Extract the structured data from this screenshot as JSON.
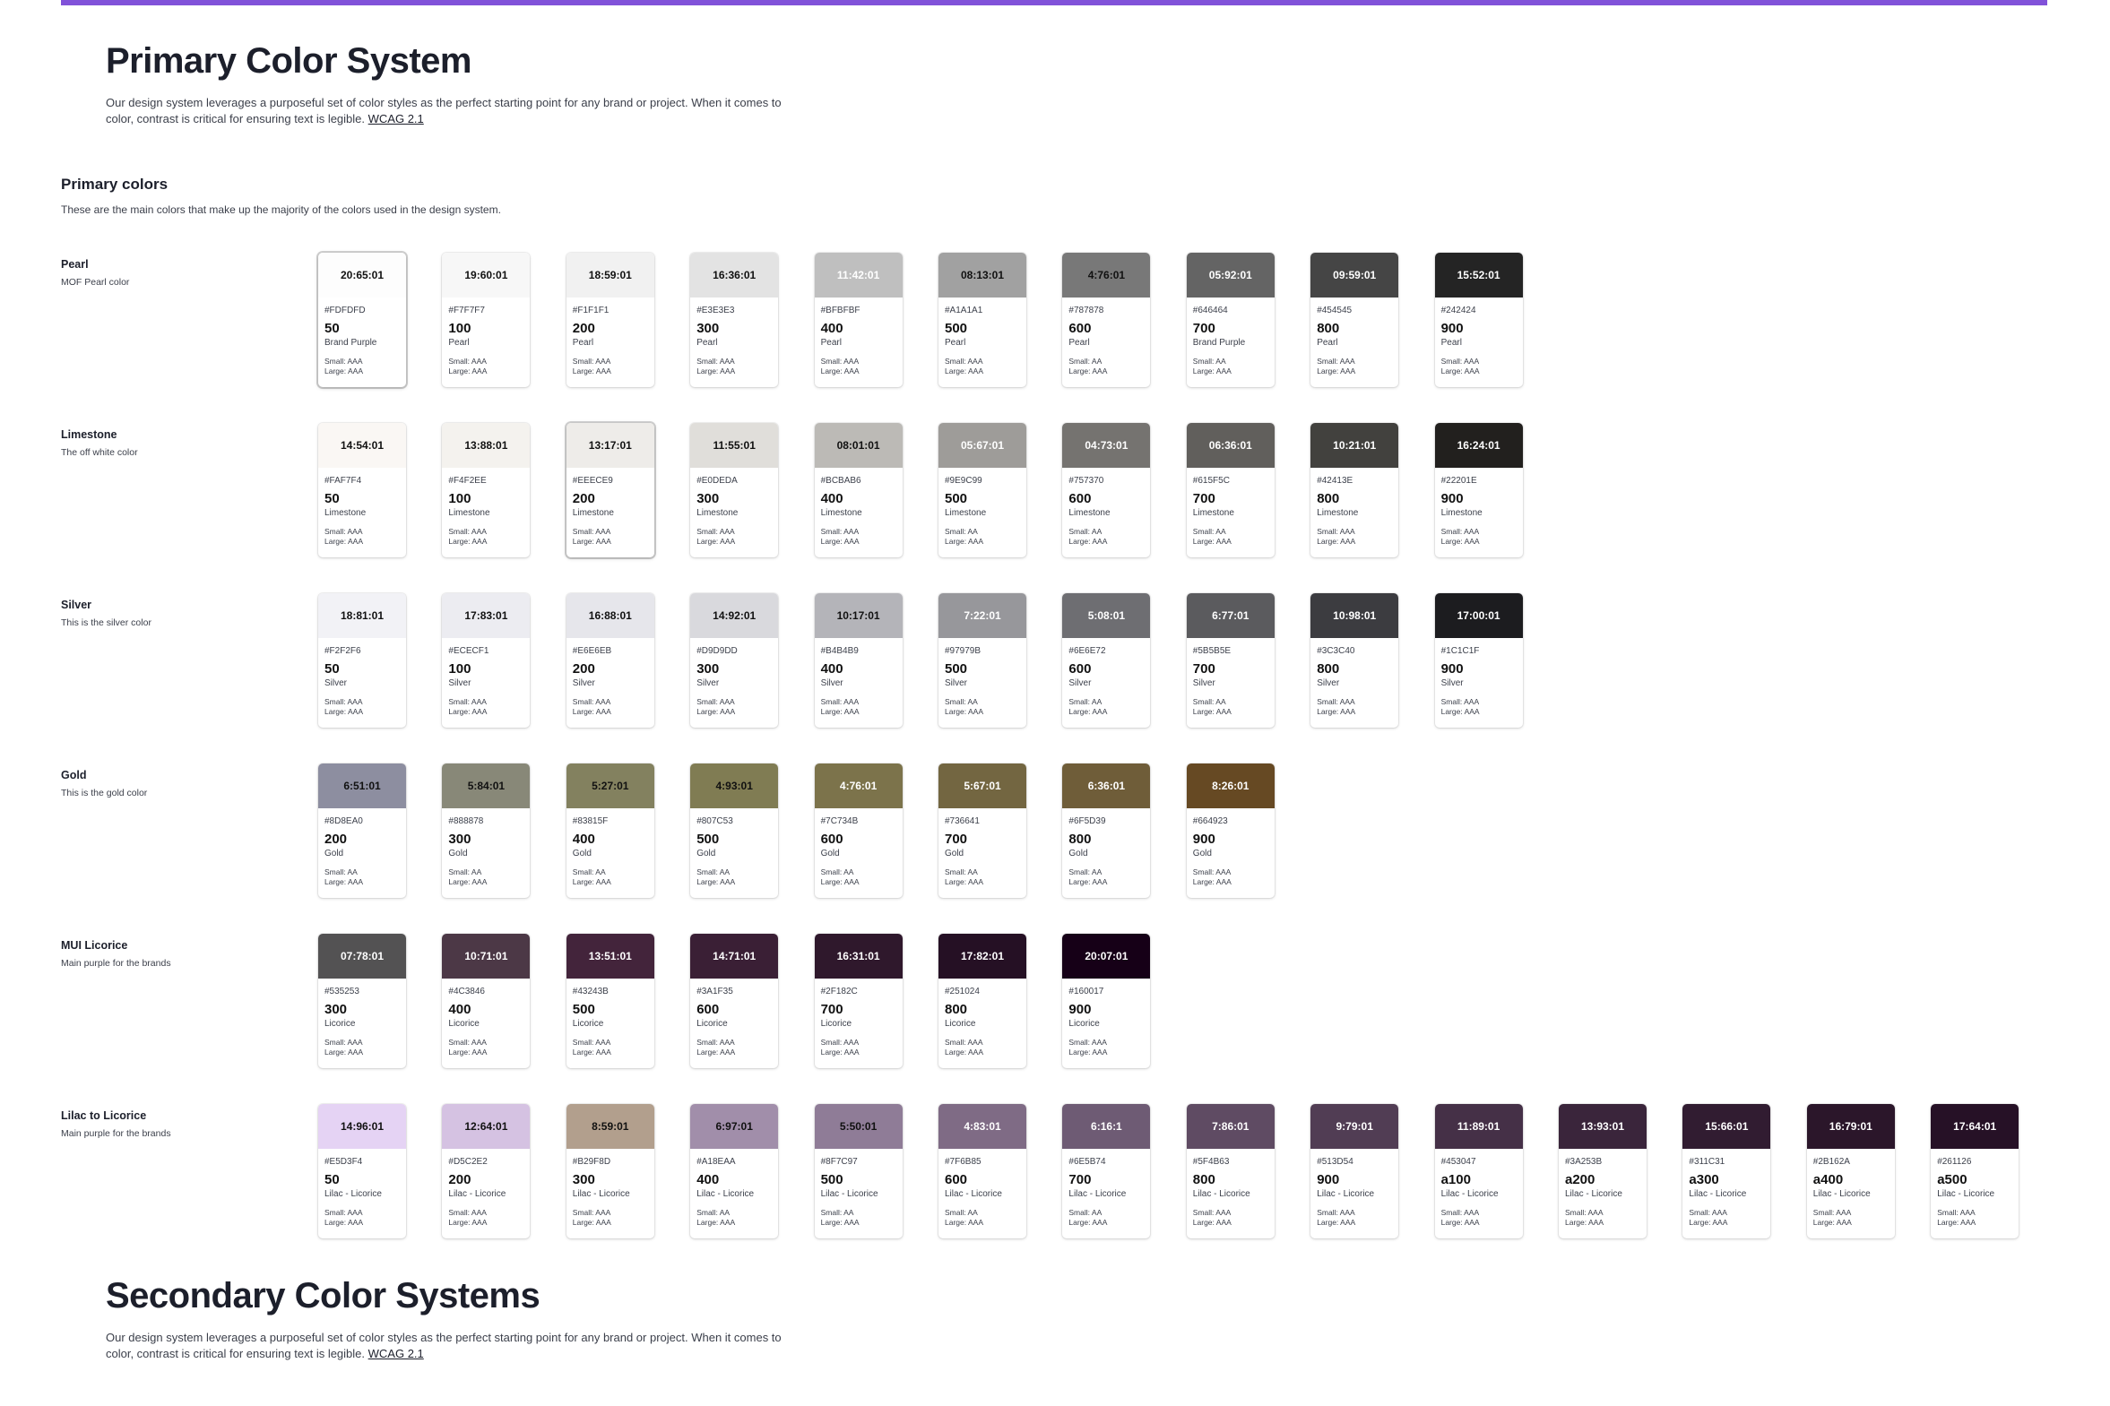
{
  "accent_bar_color": "#8152d9",
  "header": {
    "title": "Primary Color System",
    "description": "Our design system leverages a purposeful set of color styles as the perfect starting point for any brand or project. When it comes to color, contrast is critical for ensuring text is legible.",
    "link_label": "WCAG 2.1"
  },
  "primary_section": {
    "title": "Primary colors",
    "description": "These are the main colors that make up the majority of the colors used in the design system."
  },
  "palettes": [
    {
      "name": "Pearl",
      "description": "MOF Pearl color",
      "swatches": [
        {
          "ratio": "20:65:01",
          "hex": "#FDFDFD",
          "shade": "50",
          "label": "Brand Purple",
          "small": "Small: AAA",
          "large": "Large: AAA",
          "text_color": "#111111",
          "selected": true
        },
        {
          "ratio": "19:60:01",
          "hex": "#F7F7F7",
          "shade": "100",
          "label": "Pearl",
          "small": "Small: AAA",
          "large": "Large: AAA",
          "text_color": "#111111"
        },
        {
          "ratio": "18:59:01",
          "hex": "#F1F1F1",
          "shade": "200",
          "label": "Pearl",
          "small": "Small: AAA",
          "large": "Large: AAA",
          "text_color": "#111111"
        },
        {
          "ratio": "16:36:01",
          "hex": "#E3E3E3",
          "shade": "300",
          "label": "Pearl",
          "small": "Small: AAA",
          "large": "Large: AAA",
          "text_color": "#111111"
        },
        {
          "ratio": "11:42:01",
          "hex": "#BFBFBF",
          "shade": "400",
          "label": "Pearl",
          "small": "Small: AAA",
          "large": "Large: AAA",
          "text_color": "#ffffff"
        },
        {
          "ratio": "08:13:01",
          "hex": "#A1A1A1",
          "shade": "500",
          "label": "Pearl",
          "small": "Small: AAA",
          "large": "Large: AAA",
          "text_color": "#111111"
        },
        {
          "ratio": "4:76:01",
          "hex": "#787878",
          "shade": "600",
          "label": "Pearl",
          "small": "Small: AA",
          "large": "Large: AAA",
          "text_color": "#111111"
        },
        {
          "ratio": "05:92:01",
          "hex": "#646464",
          "shade": "700",
          "label": "Brand Purple",
          "small": "Small: AA",
          "large": "Large: AAA",
          "text_color": "#ffffff"
        },
        {
          "ratio": "09:59:01",
          "hex": "#454545",
          "shade": "800",
          "label": "Pearl",
          "small": "Small: AAA",
          "large": "Large: AAA",
          "text_color": "#ffffff"
        },
        {
          "ratio": "15:52:01",
          "hex": "#242424",
          "shade": "900",
          "label": "Pearl",
          "small": "Small: AAA",
          "large": "Large: AAA",
          "text_color": "#ffffff"
        }
      ]
    },
    {
      "name": "Limestone",
      "description": "The off white color",
      "swatches": [
        {
          "ratio": "14:54:01",
          "hex": "#FAF7F4",
          "shade": "50",
          "label": "Limestone",
          "small": "Small: AAA",
          "large": "Large: AAA",
          "text_color": "#111111"
        },
        {
          "ratio": "13:88:01",
          "hex": "#F4F2EE",
          "shade": "100",
          "label": "Limestone",
          "small": "Small: AAA",
          "large": "Large: AAA",
          "text_color": "#111111"
        },
        {
          "ratio": "13:17:01",
          "hex": "#EEECE9",
          "shade": "200",
          "label": "Limestone",
          "small": "Small: AAA",
          "large": "Large: AAA",
          "text_color": "#111111",
          "selected": true
        },
        {
          "ratio": "11:55:01",
          "hex": "#E0DEDA",
          "shade": "300",
          "label": "Limestone",
          "small": "Small: AAA",
          "large": "Large: AAA",
          "text_color": "#111111"
        },
        {
          "ratio": "08:01:01",
          "hex": "#BCBAB6",
          "shade": "400",
          "label": "Limestone",
          "small": "Small: AAA",
          "large": "Large: AAA",
          "text_color": "#111111"
        },
        {
          "ratio": "05:67:01",
          "hex": "#9E9C99",
          "shade": "500",
          "label": "Limestone",
          "small": "Small: AA",
          "large": "Large: AAA",
          "text_color": "#ffffff"
        },
        {
          "ratio": "04:73:01",
          "hex": "#757370",
          "shade": "600",
          "label": "Limestone",
          "small": "Small: AA",
          "large": "Large: AAA",
          "text_color": "#ffffff"
        },
        {
          "ratio": "06:36:01",
          "hex": "#615F5C",
          "shade": "700",
          "label": "Limestone",
          "small": "Small: AA",
          "large": "Large: AAA",
          "text_color": "#ffffff"
        },
        {
          "ratio": "10:21:01",
          "hex": "#42413E",
          "shade": "800",
          "label": "Limestone",
          "small": "Small: AAA",
          "large": "Large: AAA",
          "text_color": "#ffffff"
        },
        {
          "ratio": "16:24:01",
          "hex": "#22201E",
          "shade": "900",
          "label": "Limestone",
          "small": "Small: AAA",
          "large": "Large: AAA",
          "text_color": "#ffffff"
        }
      ]
    },
    {
      "name": "Silver",
      "description": "This is the silver color",
      "swatches": [
        {
          "ratio": "18:81:01",
          "hex": "#F2F2F6",
          "shade": "50",
          "label": "Silver",
          "small": "Small: AAA",
          "large": "Large: AAA",
          "text_color": "#111111"
        },
        {
          "ratio": "17:83:01",
          "hex": "#ECECF1",
          "shade": "100",
          "label": "Silver",
          "small": "Small: AAA",
          "large": "Large: AAA",
          "text_color": "#111111"
        },
        {
          "ratio": "16:88:01",
          "hex": "#E6E6EB",
          "shade": "200",
          "label": "Silver",
          "small": "Small: AAA",
          "large": "Large: AAA",
          "text_color": "#111111"
        },
        {
          "ratio": "14:92:01",
          "hex": "#D9D9DD",
          "shade": "300",
          "label": "Silver",
          "small": "Small: AAA",
          "large": "Large: AAA",
          "text_color": "#111111"
        },
        {
          "ratio": "10:17:01",
          "hex": "#B4B4B9",
          "shade": "400",
          "label": "Silver",
          "small": "Small: AAA",
          "large": "Large: AAA",
          "text_color": "#111111"
        },
        {
          "ratio": "7:22:01",
          "hex": "#97979B",
          "shade": "500",
          "label": "Silver",
          "small": "Small: AA",
          "large": "Large: AAA",
          "text_color": "#ffffff"
        },
        {
          "ratio": "5:08:01",
          "hex": "#6E6E72",
          "shade": "600",
          "label": "Silver",
          "small": "Small: AA",
          "large": "Large: AAA",
          "text_color": "#ffffff"
        },
        {
          "ratio": "6:77:01",
          "hex": "#5B5B5E",
          "shade": "700",
          "label": "Silver",
          "small": "Small: AA",
          "large": "Large: AAA",
          "text_color": "#ffffff"
        },
        {
          "ratio": "10:98:01",
          "hex": "#3C3C40",
          "shade": "800",
          "label": "Silver",
          "small": "Small: AAA",
          "large": "Large: AAA",
          "text_color": "#ffffff"
        },
        {
          "ratio": "17:00:01",
          "hex": "#1C1C1F",
          "shade": "900",
          "label": "Silver",
          "small": "Small: AAA",
          "large": "Large: AAA",
          "text_color": "#ffffff"
        }
      ]
    },
    {
      "name": "Gold",
      "description": "This is the gold color",
      "swatches": [
        {
          "ratio": "6:51:01",
          "hex": "#8D8EA0",
          "shade": "200",
          "label": "Gold",
          "small": "Small: AA",
          "large": "Large: AAA",
          "text_color": "#111111"
        },
        {
          "ratio": "5:84:01",
          "hex": "#888878",
          "shade": "300",
          "label": "Gold",
          "small": "Small: AA",
          "large": "Large: AAA",
          "text_color": "#111111"
        },
        {
          "ratio": "5:27:01",
          "hex": "#83815F",
          "shade": "400",
          "label": "Gold",
          "small": "Small: AA",
          "large": "Large: AAA",
          "text_color": "#111111"
        },
        {
          "ratio": "4:93:01",
          "hex": "#807C53",
          "shade": "500",
          "label": "Gold",
          "small": "Small: AA",
          "large": "Large: AAA",
          "text_color": "#111111"
        },
        {
          "ratio": "4:76:01",
          "hex": "#7C734B",
          "shade": "600",
          "label": "Gold",
          "small": "Small: AA",
          "large": "Large: AAA",
          "text_color": "#ffffff"
        },
        {
          "ratio": "5:67:01",
          "hex": "#736641",
          "shade": "700",
          "label": "Gold",
          "small": "Small: AA",
          "large": "Large: AAA",
          "text_color": "#ffffff"
        },
        {
          "ratio": "6:36:01",
          "hex": "#6F5D39",
          "shade": "800",
          "label": "Gold",
          "small": "Small: AA",
          "large": "Large: AAA",
          "text_color": "#ffffff"
        },
        {
          "ratio": "8:26:01",
          "hex": "#664923",
          "shade": "900",
          "label": "Gold",
          "small": "Small: AAA",
          "large": "Large: AAA",
          "text_color": "#ffffff"
        }
      ]
    },
    {
      "name": "MUI Licorice",
      "description": "Main purple for the brands",
      "swatches": [
        {
          "ratio": "07:78:01",
          "hex": "#535253",
          "shade": "300",
          "label": "Licorice",
          "small": "Small: AAA",
          "large": "Large: AAA",
          "text_color": "#ffffff"
        },
        {
          "ratio": "10:71:01",
          "hex": "#4C3846",
          "shade": "400",
          "label": "Licorice",
          "small": "Small: AAA",
          "large": "Large: AAA",
          "text_color": "#ffffff"
        },
        {
          "ratio": "13:51:01",
          "hex": "#43243B",
          "shade": "500",
          "label": "Licorice",
          "small": "Small: AAA",
          "large": "Large: AAA",
          "text_color": "#ffffff"
        },
        {
          "ratio": "14:71:01",
          "hex": "#3A1F35",
          "shade": "600",
          "label": "Licorice",
          "small": "Small: AAA",
          "large": "Large: AAA",
          "text_color": "#ffffff"
        },
        {
          "ratio": "16:31:01",
          "hex": "#2F182C",
          "shade": "700",
          "label": "Licorice",
          "small": "Small: AAA",
          "large": "Large: AAA",
          "text_color": "#ffffff"
        },
        {
          "ratio": "17:82:01",
          "hex": "#251024",
          "shade": "800",
          "label": "Licorice",
          "small": "Small: AAA",
          "large": "Large: AAA",
          "text_color": "#ffffff"
        },
        {
          "ratio": "20:07:01",
          "hex": "#160017",
          "shade": "900",
          "label": "Licorice",
          "small": "Small: AAA",
          "large": "Large: AAA",
          "text_color": "#ffffff"
        }
      ]
    },
    {
      "name": "Lilac to Licorice",
      "description": "Main purple for the brands",
      "swatches": [
        {
          "ratio": "14:96:01",
          "hex": "#E5D3F4",
          "shade": "50",
          "label": "Lilac - Licorice",
          "small": "Small: AAA",
          "large": "Large: AAA",
          "text_color": "#111111"
        },
        {
          "ratio": "12:64:01",
          "hex": "#D5C2E2",
          "shade": "200",
          "label": "Lilac - Licorice",
          "small": "Small: AAA",
          "large": "Large: AAA",
          "text_color": "#111111"
        },
        {
          "ratio": "8:59:01",
          "hex": "#B29F8D",
          "shade": "300",
          "label": "Lilac - Licorice",
          "small": "Small: AAA",
          "large": "Large: AAA",
          "text_color": "#111111"
        },
        {
          "ratio": "6:97:01",
          "hex": "#A18EAA",
          "shade": "400",
          "label": "Lilac - Licorice",
          "small": "Small: AA",
          "large": "Large: AAA",
          "text_color": "#111111"
        },
        {
          "ratio": "5:50:01",
          "hex": "#8F7C97",
          "shade": "500",
          "label": "Lilac - Licorice",
          "small": "Small: AA",
          "large": "Large: AAA",
          "text_color": "#111111"
        },
        {
          "ratio": "4:83:01",
          "hex": "#7F6B85",
          "shade": "600",
          "label": "Lilac - Licorice",
          "small": "Small: AA",
          "large": "Large: AAA",
          "text_color": "#ffffff"
        },
        {
          "ratio": "6:16:1",
          "hex": "#6E5B74",
          "shade": "700",
          "label": "Lilac - Licorice",
          "small": "Small: AA",
          "large": "Large: AAA",
          "text_color": "#ffffff"
        },
        {
          "ratio": "7:86:01",
          "hex": "#5F4B63",
          "shade": "800",
          "label": "Lilac - Licorice",
          "small": "Small: AAA",
          "large": "Large: AAA",
          "text_color": "#ffffff"
        },
        {
          "ratio": "9:79:01",
          "hex": "#513D54",
          "shade": "900",
          "label": "Lilac - Licorice",
          "small": "Small: AAA",
          "large": "Large: AAA",
          "text_color": "#ffffff"
        },
        {
          "ratio": "11:89:01",
          "hex": "#453047",
          "shade": "a100",
          "label": "Lilac - Licorice",
          "small": "Small: AAA",
          "large": "Large: AAA",
          "text_color": "#ffffff"
        },
        {
          "ratio": "13:93:01",
          "hex": "#3A253B",
          "shade": "a200",
          "label": "Lilac - Licorice",
          "small": "Small: AAA",
          "large": "Large: AAA",
          "text_color": "#ffffff"
        },
        {
          "ratio": "15:66:01",
          "hex": "#311C31",
          "shade": "a300",
          "label": "Lilac - Licorice",
          "small": "Small: AAA",
          "large": "Large: AAA",
          "text_color": "#ffffff"
        },
        {
          "ratio": "16:79:01",
          "hex": "#2B162A",
          "shade": "a400",
          "label": "Lilac - Licorice",
          "small": "Small: AAA",
          "large": "Large: AAA",
          "text_color": "#ffffff"
        },
        {
          "ratio": "17:64:01",
          "hex": "#261126",
          "shade": "a500",
          "label": "Lilac - Licorice",
          "small": "Small: AAA",
          "large": "Large: AAA",
          "text_color": "#ffffff"
        }
      ]
    }
  ],
  "secondary_header": {
    "title": "Secondary Color Systems",
    "description": "Our design system leverages a purposeful set of color styles as the perfect starting point for any brand or project. When it comes to color, contrast is critical for ensuring text is legible.",
    "link_label": "WCAG 2.1"
  }
}
